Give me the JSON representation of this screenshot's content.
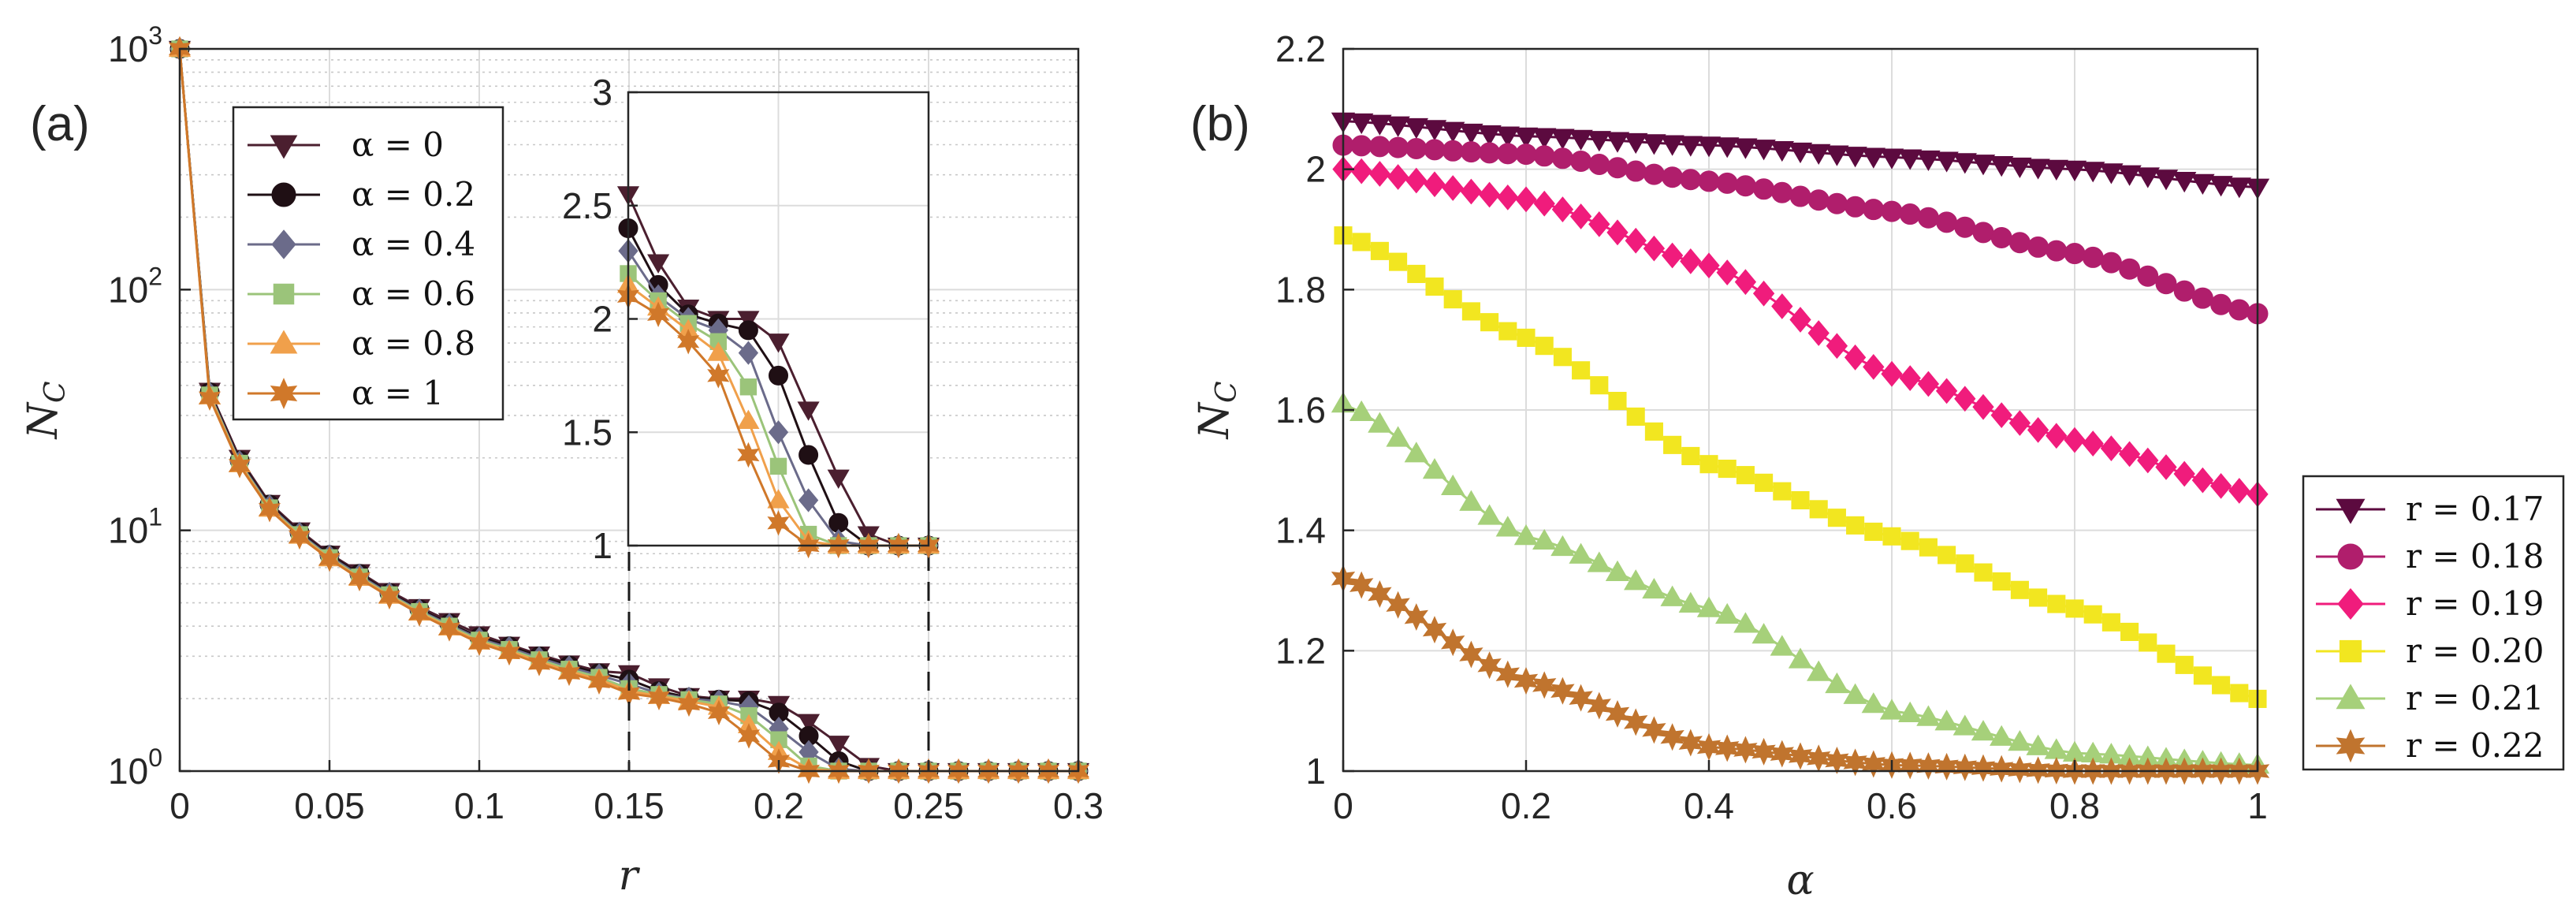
{
  "chart_data": [
    {
      "panel_label": "(a)",
      "type": "line",
      "xlabel": "r",
      "ylabel": "N",
      "ylabel_sub": "C",
      "yscale": "log",
      "xlim": [
        0,
        0.3
      ],
      "ylim": [
        1,
        1000
      ],
      "xticks": [
        "0",
        "0.05",
        "0.1",
        "0.15",
        "0.2",
        "0.25",
        "0.3"
      ],
      "yticks": [
        {
          "base": "10",
          "exp": "0"
        },
        {
          "base": "10",
          "exp": "1"
        },
        {
          "base": "10",
          "exp": "2"
        },
        {
          "base": "10",
          "exp": "3"
        }
      ],
      "grid": true,
      "legend_position": "top-left",
      "x": [
        0,
        0.01,
        0.02,
        0.03,
        0.04,
        0.05,
        0.06,
        0.07,
        0.08,
        0.09,
        0.1,
        0.11,
        0.12,
        0.13,
        0.14,
        0.15,
        0.16,
        0.17,
        0.18,
        0.19,
        0.2,
        0.21,
        0.22,
        0.23,
        0.24,
        0.25,
        0.26,
        0.27,
        0.28,
        0.29,
        0.3
      ],
      "series": [
        {
          "name": "α = 0",
          "color": "#4b1f2f",
          "marker": "triangle-down",
          "values": [
            1000,
            38,
            20,
            13,
            10,
            8,
            6.7,
            5.6,
            4.8,
            4.2,
            3.7,
            3.35,
            3.05,
            2.8,
            2.6,
            2.55,
            2.25,
            2.05,
            2.0,
            2.0,
            1.9,
            1.6,
            1.3,
            1.05,
            1.0,
            1.0,
            1.0,
            1.0,
            1.0,
            1.0,
            1.0
          ]
        },
        {
          "name": "α = 0.2",
          "color": "#1f0f14",
          "marker": "circle",
          "values": [
            1000,
            37.5,
            19.5,
            12.8,
            9.8,
            7.9,
            6.6,
            5.5,
            4.7,
            4.1,
            3.6,
            3.3,
            3.0,
            2.75,
            2.55,
            2.4,
            2.15,
            2.02,
            1.98,
            1.95,
            1.75,
            1.4,
            1.1,
            1.0,
            1.0,
            1.0,
            1.0,
            1.0,
            1.0,
            1.0,
            1.0
          ]
        },
        {
          "name": "α = 0.4",
          "color": "#6b6b8a",
          "marker": "diamond",
          "values": [
            1000,
            37,
            19.2,
            12.6,
            9.7,
            7.8,
            6.5,
            5.45,
            4.65,
            4.05,
            3.55,
            3.25,
            2.95,
            2.7,
            2.5,
            2.3,
            2.1,
            2.0,
            1.95,
            1.85,
            1.5,
            1.2,
            1.02,
            1.0,
            1.0,
            1.0,
            1.0,
            1.0,
            1.0,
            1.0,
            1.0
          ]
        },
        {
          "name": "α = 0.6",
          "color": "#9bc47a",
          "marker": "square",
          "values": [
            1000,
            36.5,
            19,
            12.4,
            9.6,
            7.7,
            6.4,
            5.4,
            4.6,
            4.0,
            3.5,
            3.2,
            2.9,
            2.65,
            2.45,
            2.2,
            2.08,
            1.98,
            1.9,
            1.7,
            1.35,
            1.05,
            1.0,
            1.0,
            1.0,
            1.0,
            1.0,
            1.0,
            1.0,
            1.0,
            1.0
          ]
        },
        {
          "name": "α = 0.8",
          "color": "#f0a04b",
          "marker": "triangle-up",
          "values": [
            1000,
            36,
            18.8,
            12.3,
            9.5,
            7.65,
            6.35,
            5.35,
            4.55,
            3.95,
            3.45,
            3.15,
            2.85,
            2.6,
            2.4,
            2.15,
            2.05,
            1.95,
            1.85,
            1.55,
            1.2,
            1.02,
            1.0,
            1.0,
            1.0,
            1.0,
            1.0,
            1.0,
            1.0,
            1.0,
            1.0
          ]
        },
        {
          "name": "α = 1",
          "color": "#d0782a",
          "marker": "hexagram",
          "values": [
            1000,
            35.5,
            18.6,
            12.2,
            9.4,
            7.6,
            6.3,
            5.3,
            4.5,
            3.9,
            3.4,
            3.1,
            2.8,
            2.55,
            2.35,
            2.1,
            2.02,
            1.9,
            1.75,
            1.4,
            1.1,
            1.0,
            1.0,
            1.0,
            1.0,
            1.0,
            1.0,
            1.0,
            1.0,
            1.0,
            1.0
          ]
        }
      ],
      "inset": {
        "xlim": [
          0.15,
          0.25
        ],
        "ylim": [
          1,
          3
        ],
        "yticks": [
          "1",
          "1.5",
          "2",
          "2.5",
          "3"
        ],
        "grid": true
      }
    },
    {
      "panel_label": "(b)",
      "type": "line",
      "xlabel": "α",
      "ylabel": "N",
      "ylabel_sub": "C",
      "xlim": [
        0,
        1
      ],
      "ylim": [
        1,
        2.2
      ],
      "xticks": [
        "0",
        "0.2",
        "0.4",
        "0.6",
        "0.8",
        "1"
      ],
      "yticks": [
        "1",
        "1.2",
        "1.4",
        "1.6",
        "1.8",
        "2",
        "2.2"
      ],
      "grid": true,
      "legend_position": "outside-right-bottom",
      "x_points": 51,
      "series": [
        {
          "name": "r = 0.17",
          "color": "#5c0a3f",
          "marker": "triangle-down",
          "alpha": [
            0,
            0.2,
            0.4,
            0.6,
            0.8,
            1.0
          ],
          "values": [
            2.08,
            2.055,
            2.04,
            2.02,
            2.0,
            1.97
          ]
        },
        {
          "name": "r = 0.18",
          "color": "#b01e6c",
          "marker": "circle",
          "alpha": [
            0,
            0.2,
            0.4,
            0.6,
            0.8,
            1.0
          ],
          "values": [
            2.04,
            2.025,
            1.98,
            1.93,
            1.86,
            1.76
          ]
        },
        {
          "name": "r = 0.19",
          "color": "#f01c7c",
          "marker": "diamond",
          "alpha": [
            0,
            0.2,
            0.4,
            0.6,
            0.8,
            1.0
          ],
          "values": [
            2.0,
            1.95,
            1.84,
            1.66,
            1.55,
            1.46
          ]
        },
        {
          "name": "r = 0.20",
          "color": "#f2e620",
          "marker": "square",
          "alpha": [
            0,
            0.2,
            0.4,
            0.6,
            0.8,
            1.0
          ],
          "values": [
            1.89,
            1.72,
            1.51,
            1.39,
            1.27,
            1.12
          ]
        },
        {
          "name": "r = 0.21",
          "color": "#a6d07a",
          "marker": "triangle-up",
          "alpha": [
            0,
            0.2,
            0.4,
            0.6,
            0.8,
            1.0
          ],
          "values": [
            1.61,
            1.39,
            1.27,
            1.1,
            1.03,
            1.01
          ]
        },
        {
          "name": "r = 0.22",
          "color": "#c0742e",
          "marker": "hexagram",
          "alpha": [
            0,
            0.2,
            0.4,
            0.6,
            0.8,
            1.0
          ],
          "values": [
            1.32,
            1.15,
            1.04,
            1.01,
            1.0,
            1.0
          ]
        }
      ]
    }
  ]
}
